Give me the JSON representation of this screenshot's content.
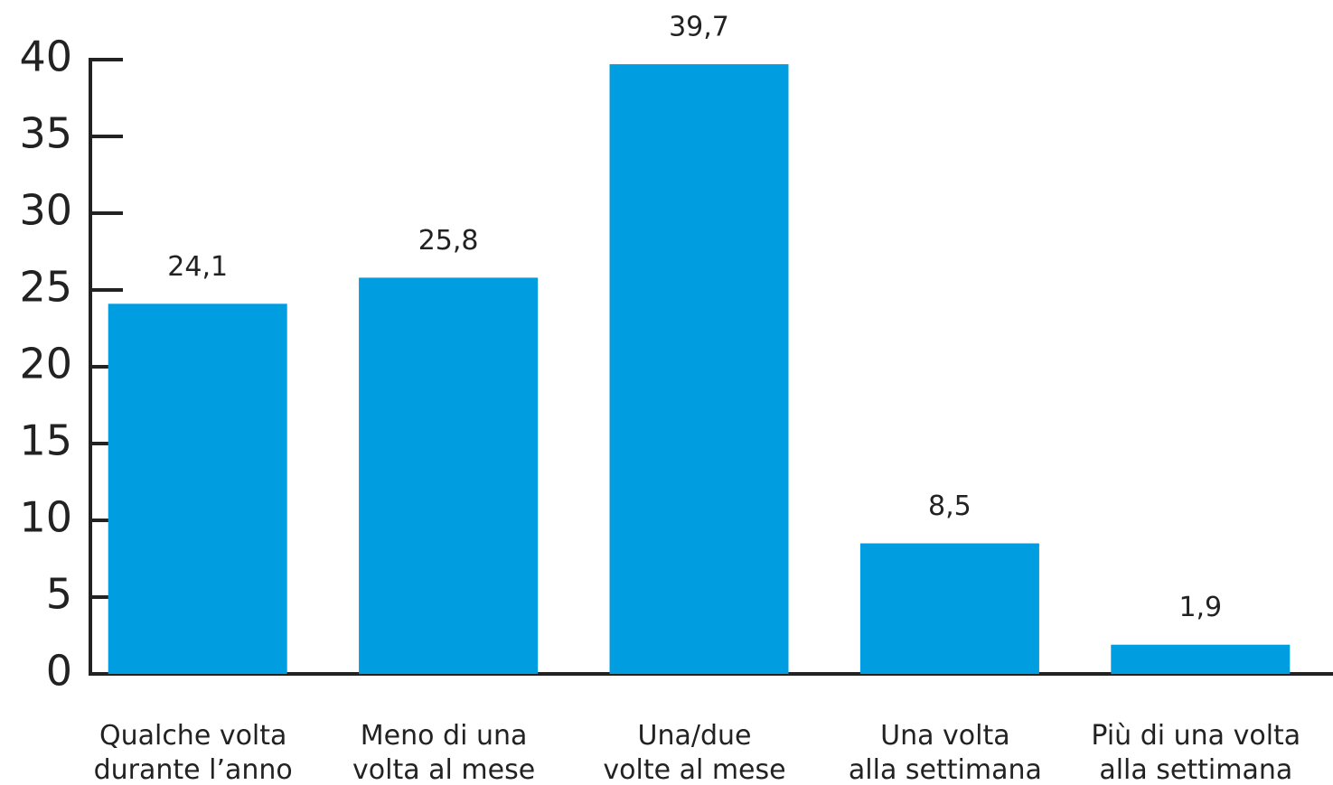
{
  "chart_data": {
    "type": "bar",
    "categories": [
      [
        "Qualche volta",
        "durante l’anno"
      ],
      [
        "Meno di una",
        "volta al mese"
      ],
      [
        "Una/due",
        "volte al mese"
      ],
      [
        "Una volta",
        "alla settimana"
      ],
      [
        "Più di una volta",
        "alla settimana"
      ]
    ],
    "values": [
      24.1,
      25.8,
      39.7,
      8.5,
      1.9
    ],
    "value_labels": [
      "24,1",
      "25,8",
      "39,7",
      "8,5",
      "1,9"
    ],
    "color": "#009de0",
    "ylim": [
      0,
      40
    ],
    "yticks": [
      0,
      5,
      10,
      15,
      20,
      25,
      30,
      35,
      40
    ],
    "grid": false
  }
}
